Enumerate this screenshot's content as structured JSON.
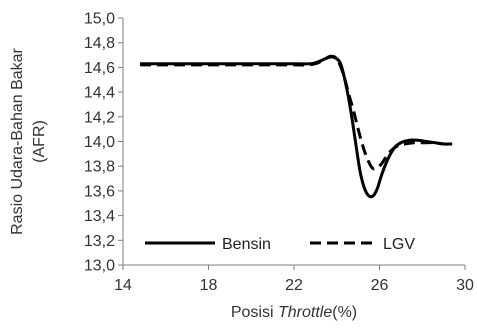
{
  "chart_data": {
    "type": "line",
    "xlabel": {
      "prefix": "Posisi ",
      "italic": "Throttle",
      "suffix": "(%)"
    },
    "ylabel": [
      "Rasio Udara-Bahan Bakar",
      "(AFR)"
    ],
    "xlim": [
      14,
      30
    ],
    "ylim": [
      13.0,
      15.0
    ],
    "x_ticks": [
      14,
      18,
      22,
      26,
      30
    ],
    "x_tick_labels": [
      "14",
      "18",
      "22",
      "26",
      "30"
    ],
    "y_ticks": [
      13.0,
      13.2,
      13.4,
      13.6,
      13.8,
      14.0,
      14.2,
      14.4,
      14.6,
      14.8,
      15.0
    ],
    "y_tick_labels": [
      "13,0",
      "13,2",
      "13,4",
      "13,6",
      "13,8",
      "14,0",
      "14,2",
      "14,4",
      "14,6",
      "14,8",
      "15,0"
    ],
    "grid": false,
    "legend_position": "bottom",
    "series": [
      {
        "name": "Bensin",
        "color": "#000000",
        "style": "solid",
        "x": [
          14.8,
          16,
          18,
          20,
          22,
          22.8,
          23.2,
          23.6,
          23.9,
          24.2,
          24.5,
          24.7,
          24.9,
          25.1,
          25.3,
          25.5,
          25.7,
          25.9,
          26.1,
          26.4,
          26.7,
          27.0,
          27.4,
          27.8,
          28.2,
          28.6,
          29.0,
          29.4
        ],
        "y": [
          14.63,
          14.63,
          14.63,
          14.63,
          14.63,
          14.63,
          14.65,
          14.68,
          14.68,
          14.62,
          14.4,
          14.2,
          13.97,
          13.75,
          13.62,
          13.56,
          13.56,
          13.62,
          13.73,
          13.86,
          13.95,
          13.99,
          14.01,
          14.01,
          14.0,
          13.99,
          13.98,
          13.98
        ]
      },
      {
        "name": "LGV",
        "color": "#000000",
        "style": "dashed",
        "x": [
          14.8,
          16,
          18,
          20,
          22,
          22.6,
          23.0,
          23.4,
          23.7,
          24.0,
          24.3,
          24.6,
          24.8,
          25.0,
          25.3,
          25.6,
          25.8,
          26.1,
          26.4,
          26.8,
          27.2,
          27.6,
          28.0,
          28.5,
          29.0,
          29.4
        ],
        "y": [
          14.62,
          14.62,
          14.62,
          14.62,
          14.62,
          14.62,
          14.63,
          14.66,
          14.69,
          14.67,
          14.55,
          14.36,
          14.24,
          14.1,
          13.92,
          13.8,
          13.78,
          13.82,
          13.9,
          13.96,
          13.98,
          13.99,
          13.99,
          13.99,
          13.98,
          13.98
        ]
      }
    ]
  }
}
